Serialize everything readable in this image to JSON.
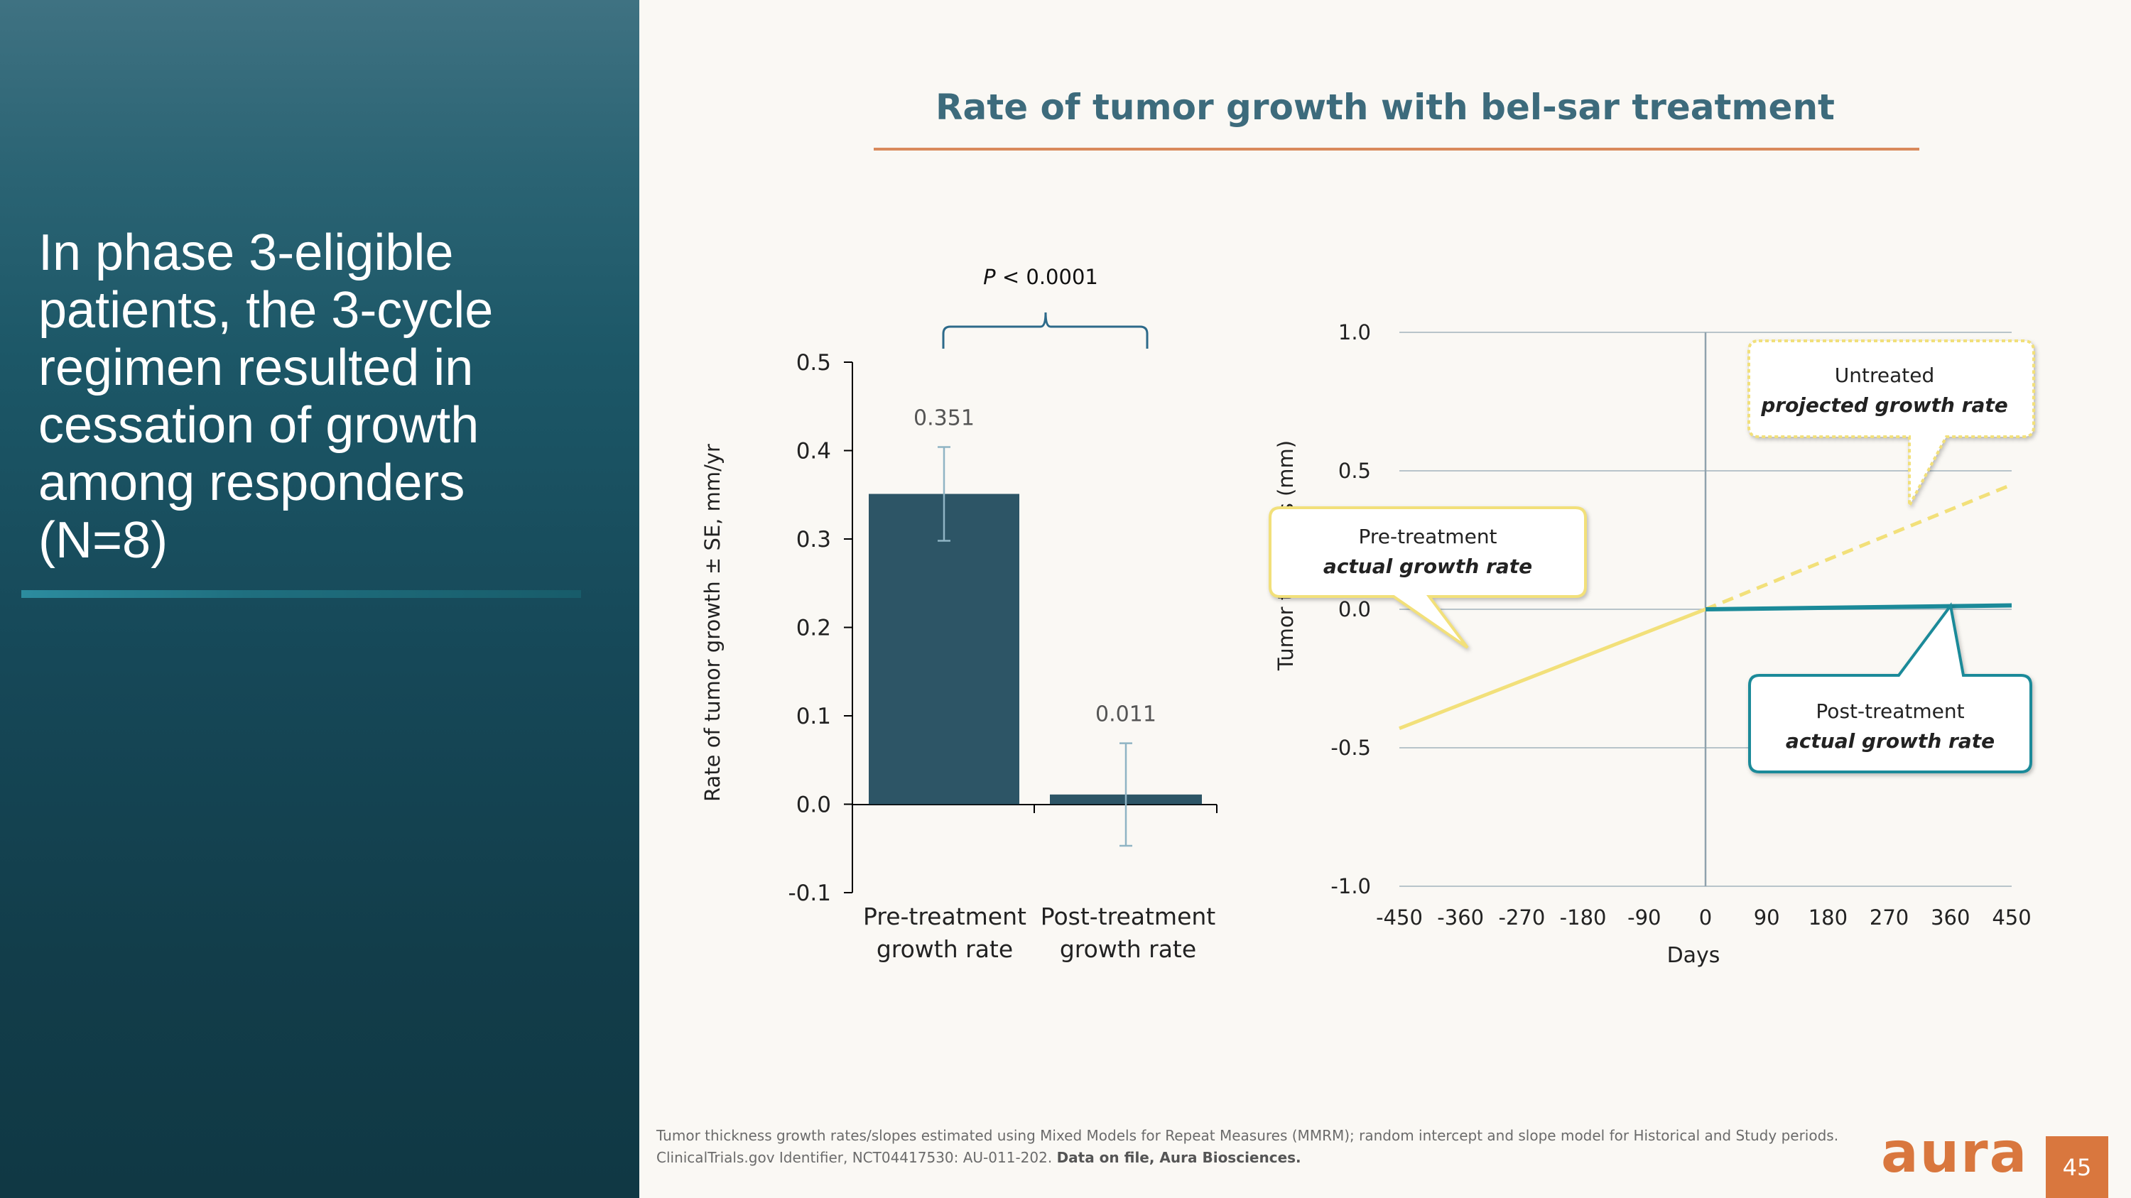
{
  "slide": {
    "headline": "In phase 3-eligible patients, the 3-cycle regimen resulted in cessation of growth among responders (N=8)",
    "title": "Rate of tumor growth with bel-sar treatment",
    "footnote_plain": "Tumor thickness growth rates/slopes estimated using Mixed Models for Repeat Measures (MMRM); random intercept and slope model for Historical and Study periods. ClinicalTrials.gov Identifier, NCT04417530: AU-011-202.",
    "footnote_bold": "Data on file, Aura Biosciences.",
    "logo_text": "aura",
    "page_number": "45"
  },
  "colors": {
    "accent": "#d9773e",
    "title": "#3d6b7c",
    "bar": "#2d5566",
    "error_bar": "#8fb4c4",
    "pre_line": "#f2e07a",
    "post_line": "#1b8a99"
  },
  "chart_data": [
    {
      "type": "bar",
      "title": "",
      "ylabel": "Rate of tumor growth ± SE, mm/yr",
      "xlabel": "",
      "ylim": [
        -0.1,
        0.5
      ],
      "yticks": [
        "-0.1",
        "0.0",
        "0.1",
        "0.2",
        "0.3",
        "0.4",
        "0.5"
      ],
      "categories": [
        {
          "line1": "Pre-treatment",
          "line2": "growth rate"
        },
        {
          "line1": "Post-treatment",
          "line2": "growth rate"
        }
      ],
      "values": [
        0.351,
        0.011
      ],
      "value_labels": [
        "0.351",
        "0.011"
      ],
      "errors": [
        0.053,
        0.058
      ],
      "significance": {
        "p_symbol": "P",
        "p_text": " < 0.0001"
      }
    },
    {
      "type": "line",
      "title": "",
      "xlabel": "Days",
      "ylabel": "Tumor thickness (mm)",
      "xlim": [
        -450,
        450
      ],
      "ylim": [
        -1.0,
        1.0
      ],
      "xticks": [
        "-450",
        "-360",
        "-270",
        "-180",
        "-90",
        "0",
        "90",
        "180",
        "270",
        "360",
        "450"
      ],
      "yticks": [
        "-1.0",
        "-0.5",
        "0.0",
        "0.5",
        "1.0"
      ],
      "series": [
        {
          "name": "Pre-treatment actual growth rate",
          "style": "solid",
          "x": [
            -450,
            0
          ],
          "y": [
            -0.43,
            0.0
          ]
        },
        {
          "name": "Untreated projected growth rate",
          "style": "dashed",
          "x": [
            0,
            450
          ],
          "y": [
            0.0,
            0.45
          ]
        },
        {
          "name": "Post-treatment actual growth rate",
          "style": "solid",
          "x": [
            0,
            450
          ],
          "y": [
            0.0,
            0.014
          ]
        }
      ],
      "callouts": [
        {
          "line1": "Pre-treatment",
          "line2": "actual growth rate"
        },
        {
          "line1": "Untreated",
          "line2": "projected growth rate"
        },
        {
          "line1": "Post-treatment",
          "line2": "actual growth rate"
        }
      ]
    }
  ]
}
